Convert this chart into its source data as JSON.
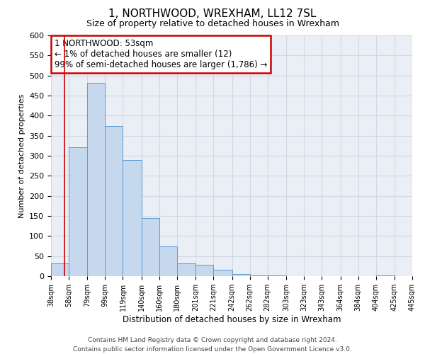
{
  "title": "1, NORTHWOOD, WREXHAM, LL12 7SL",
  "subtitle": "Size of property relative to detached houses in Wrexham",
  "xlabel": "Distribution of detached houses by size in Wrexham",
  "ylabel": "Number of detached properties",
  "bar_heights": [
    32,
    322,
    481,
    374,
    289,
    144,
    75,
    32,
    29,
    16,
    5,
    2,
    1,
    0,
    0,
    0,
    0,
    0,
    2,
    0
  ],
  "bin_edges": [
    38,
    58,
    79,
    99,
    119,
    140,
    160,
    180,
    201,
    221,
    242,
    262,
    282,
    303,
    323,
    343,
    364,
    384,
    404,
    425,
    445
  ],
  "bin_labels": [
    "38sqm",
    "58sqm",
    "79sqm",
    "99sqm",
    "119sqm",
    "140sqm",
    "160sqm",
    "180sqm",
    "201sqm",
    "221sqm",
    "242sqm",
    "262sqm",
    "282sqm",
    "303sqm",
    "323sqm",
    "343sqm",
    "364sqm",
    "384sqm",
    "404sqm",
    "425sqm",
    "445sqm"
  ],
  "bar_color": "#c5d8ed",
  "bar_edge_color": "#5b9bd5",
  "grid_color": "#d0d8e4",
  "background_color": "#eaeff5",
  "annotation_line1": "1 NORTHWOOD: 53sqm",
  "annotation_line2": "← 1% of detached houses are smaller (12)",
  "annotation_line3": "99% of semi-detached houses are larger (1,786) →",
  "annotation_box_color": "#ffffff",
  "annotation_box_edge_color": "#cc0000",
  "red_line_x": 53,
  "ylim": [
    0,
    600
  ],
  "yticks": [
    0,
    50,
    100,
    150,
    200,
    250,
    300,
    350,
    400,
    450,
    500,
    550,
    600
  ],
  "footer_line1": "Contains HM Land Registry data © Crown copyright and database right 2024.",
  "footer_line2": "Contains public sector information licensed under the Open Government Licence v3.0."
}
